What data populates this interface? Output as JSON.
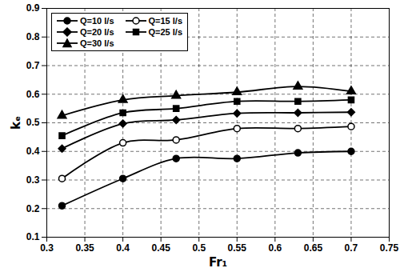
{
  "chart_data": {
    "type": "line",
    "x_label": "Fr₁",
    "y_label": "kₑ",
    "x": [
      0.32,
      0.4,
      0.47,
      0.55,
      0.63,
      0.7
    ],
    "series": [
      {
        "name": "Q=10 l/s",
        "color": "#000000",
        "marker": "circle",
        "values": [
          0.21,
          0.305,
          0.375,
          0.375,
          0.395,
          0.4
        ]
      },
      {
        "name": "Q=15 l/s",
        "color": "#000000",
        "marker": "circle-open",
        "values": [
          0.305,
          0.43,
          0.44,
          0.48,
          0.48,
          0.487
        ]
      },
      {
        "name": "Q=20 l/s",
        "color": "#000000",
        "marker": "diamond",
        "values": [
          0.41,
          0.497,
          0.51,
          0.533,
          0.535,
          0.537
        ]
      },
      {
        "name": "Q=25 l/s",
        "color": "#000000",
        "marker": "square",
        "values": [
          0.455,
          0.535,
          0.55,
          0.575,
          0.575,
          0.58
        ]
      },
      {
        "name": "Q=30 l/s",
        "color": "#000000",
        "marker": "triangle",
        "values": [
          0.525,
          0.58,
          0.595,
          0.607,
          0.627,
          0.61
        ]
      }
    ],
    "xlim": [
      0.3,
      0.75
    ],
    "xticks": [
      0.3,
      0.35,
      0.4,
      0.45,
      0.5,
      0.55,
      0.6,
      0.65,
      0.7,
      0.75
    ],
    "ylim": [
      0.1,
      0.9
    ],
    "yticks": [
      0.1,
      0.2,
      0.3,
      0.4,
      0.5,
      0.6,
      0.7,
      0.8,
      0.9
    ],
    "grid": true,
    "legend": "top-left"
  }
}
